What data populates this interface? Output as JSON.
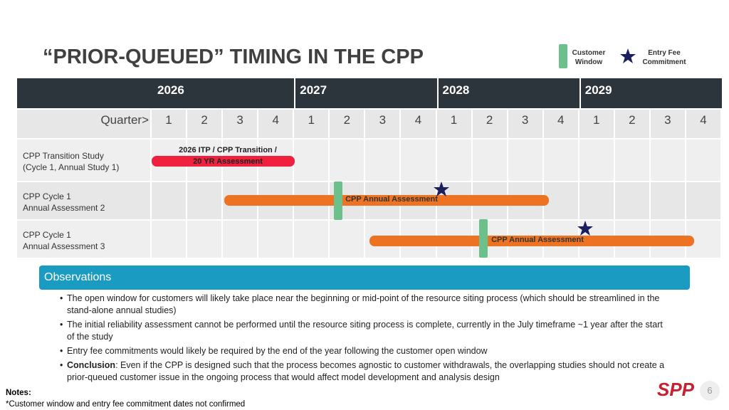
{
  "title": "“PRIOR-QUEUED” TIMING IN THE CPP",
  "legend": {
    "window": "Customer Window",
    "star": "Entry Fee Commitment"
  },
  "timeline": {
    "quarter_label": "Quarter>",
    "years": [
      {
        "year": "2026",
        "quarters": [
          1,
          2,
          3,
          4
        ]
      },
      {
        "year": "2027",
        "quarters": [
          1,
          2,
          3,
          4
        ]
      },
      {
        "year": "2028",
        "quarters": [
          1,
          2,
          3,
          4
        ]
      },
      {
        "year": "2029",
        "quarters": [
          1,
          2,
          3,
          4
        ]
      }
    ],
    "rows": [
      {
        "label": "CPP Transition Study",
        "sub": "(Cycle 1, Annual Study 1)",
        "bar": "2026 ITP / CPP Transition / 20 YR Assessment"
      },
      {
        "label": "CPP Cycle 1",
        "sub": "Annual Assessment 2",
        "bar": "CPP Annual Assessment"
      },
      {
        "label": "CPP Cycle 1",
        "sub": "Annual Assessment 3",
        "bar": "CPP Annual Assessment"
      }
    ]
  },
  "observations": {
    "heading": "Observations",
    "bullets": [
      {
        "text": "The open window for customers will likely take place near the beginning or mid-point of the resource siting process (which should be streamlined in the stand-alone annual studies)"
      },
      {
        "text": "The initial reliability assessment cannot be performed until the resource siting process is complete, currently in the July timeframe ~1 year after the start of the study"
      },
      {
        "text": "Entry fee commitments would likely be required by the end of the year following the customer open window"
      },
      {
        "label": "Conclusion",
        "text": ":  Even if the CPP is designed such that the process becomes agnostic to customer withdrawals, the overlapping studies should not create a prior-queued customer issue in the ongoing process that would affect model development and analysis design"
      }
    ]
  },
  "notes": {
    "heading": "Notes:",
    "text": "*Customer window and entry fee commitment dates not confirmed"
  },
  "logo": "SPP",
  "page_number": "6"
}
